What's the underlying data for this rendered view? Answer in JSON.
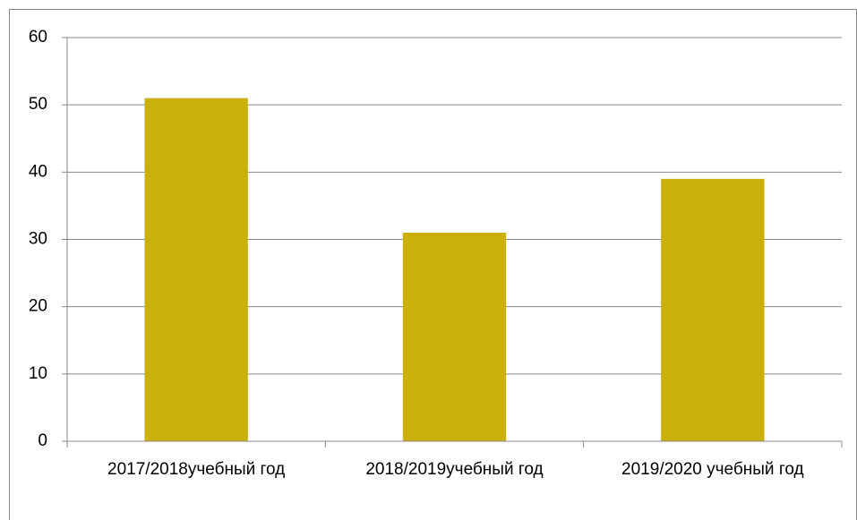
{
  "chart_data": {
    "type": "bar",
    "categories": [
      "2017/2018учебный год",
      "2018/2019учебный год",
      "2019/2020 учебный год"
    ],
    "values": [
      51,
      31,
      39
    ],
    "color": "#cbaf0a",
    "ylim": [
      0,
      60
    ],
    "yticks": [
      0,
      10,
      20,
      30,
      40,
      50,
      60
    ],
    "grid": true
  }
}
